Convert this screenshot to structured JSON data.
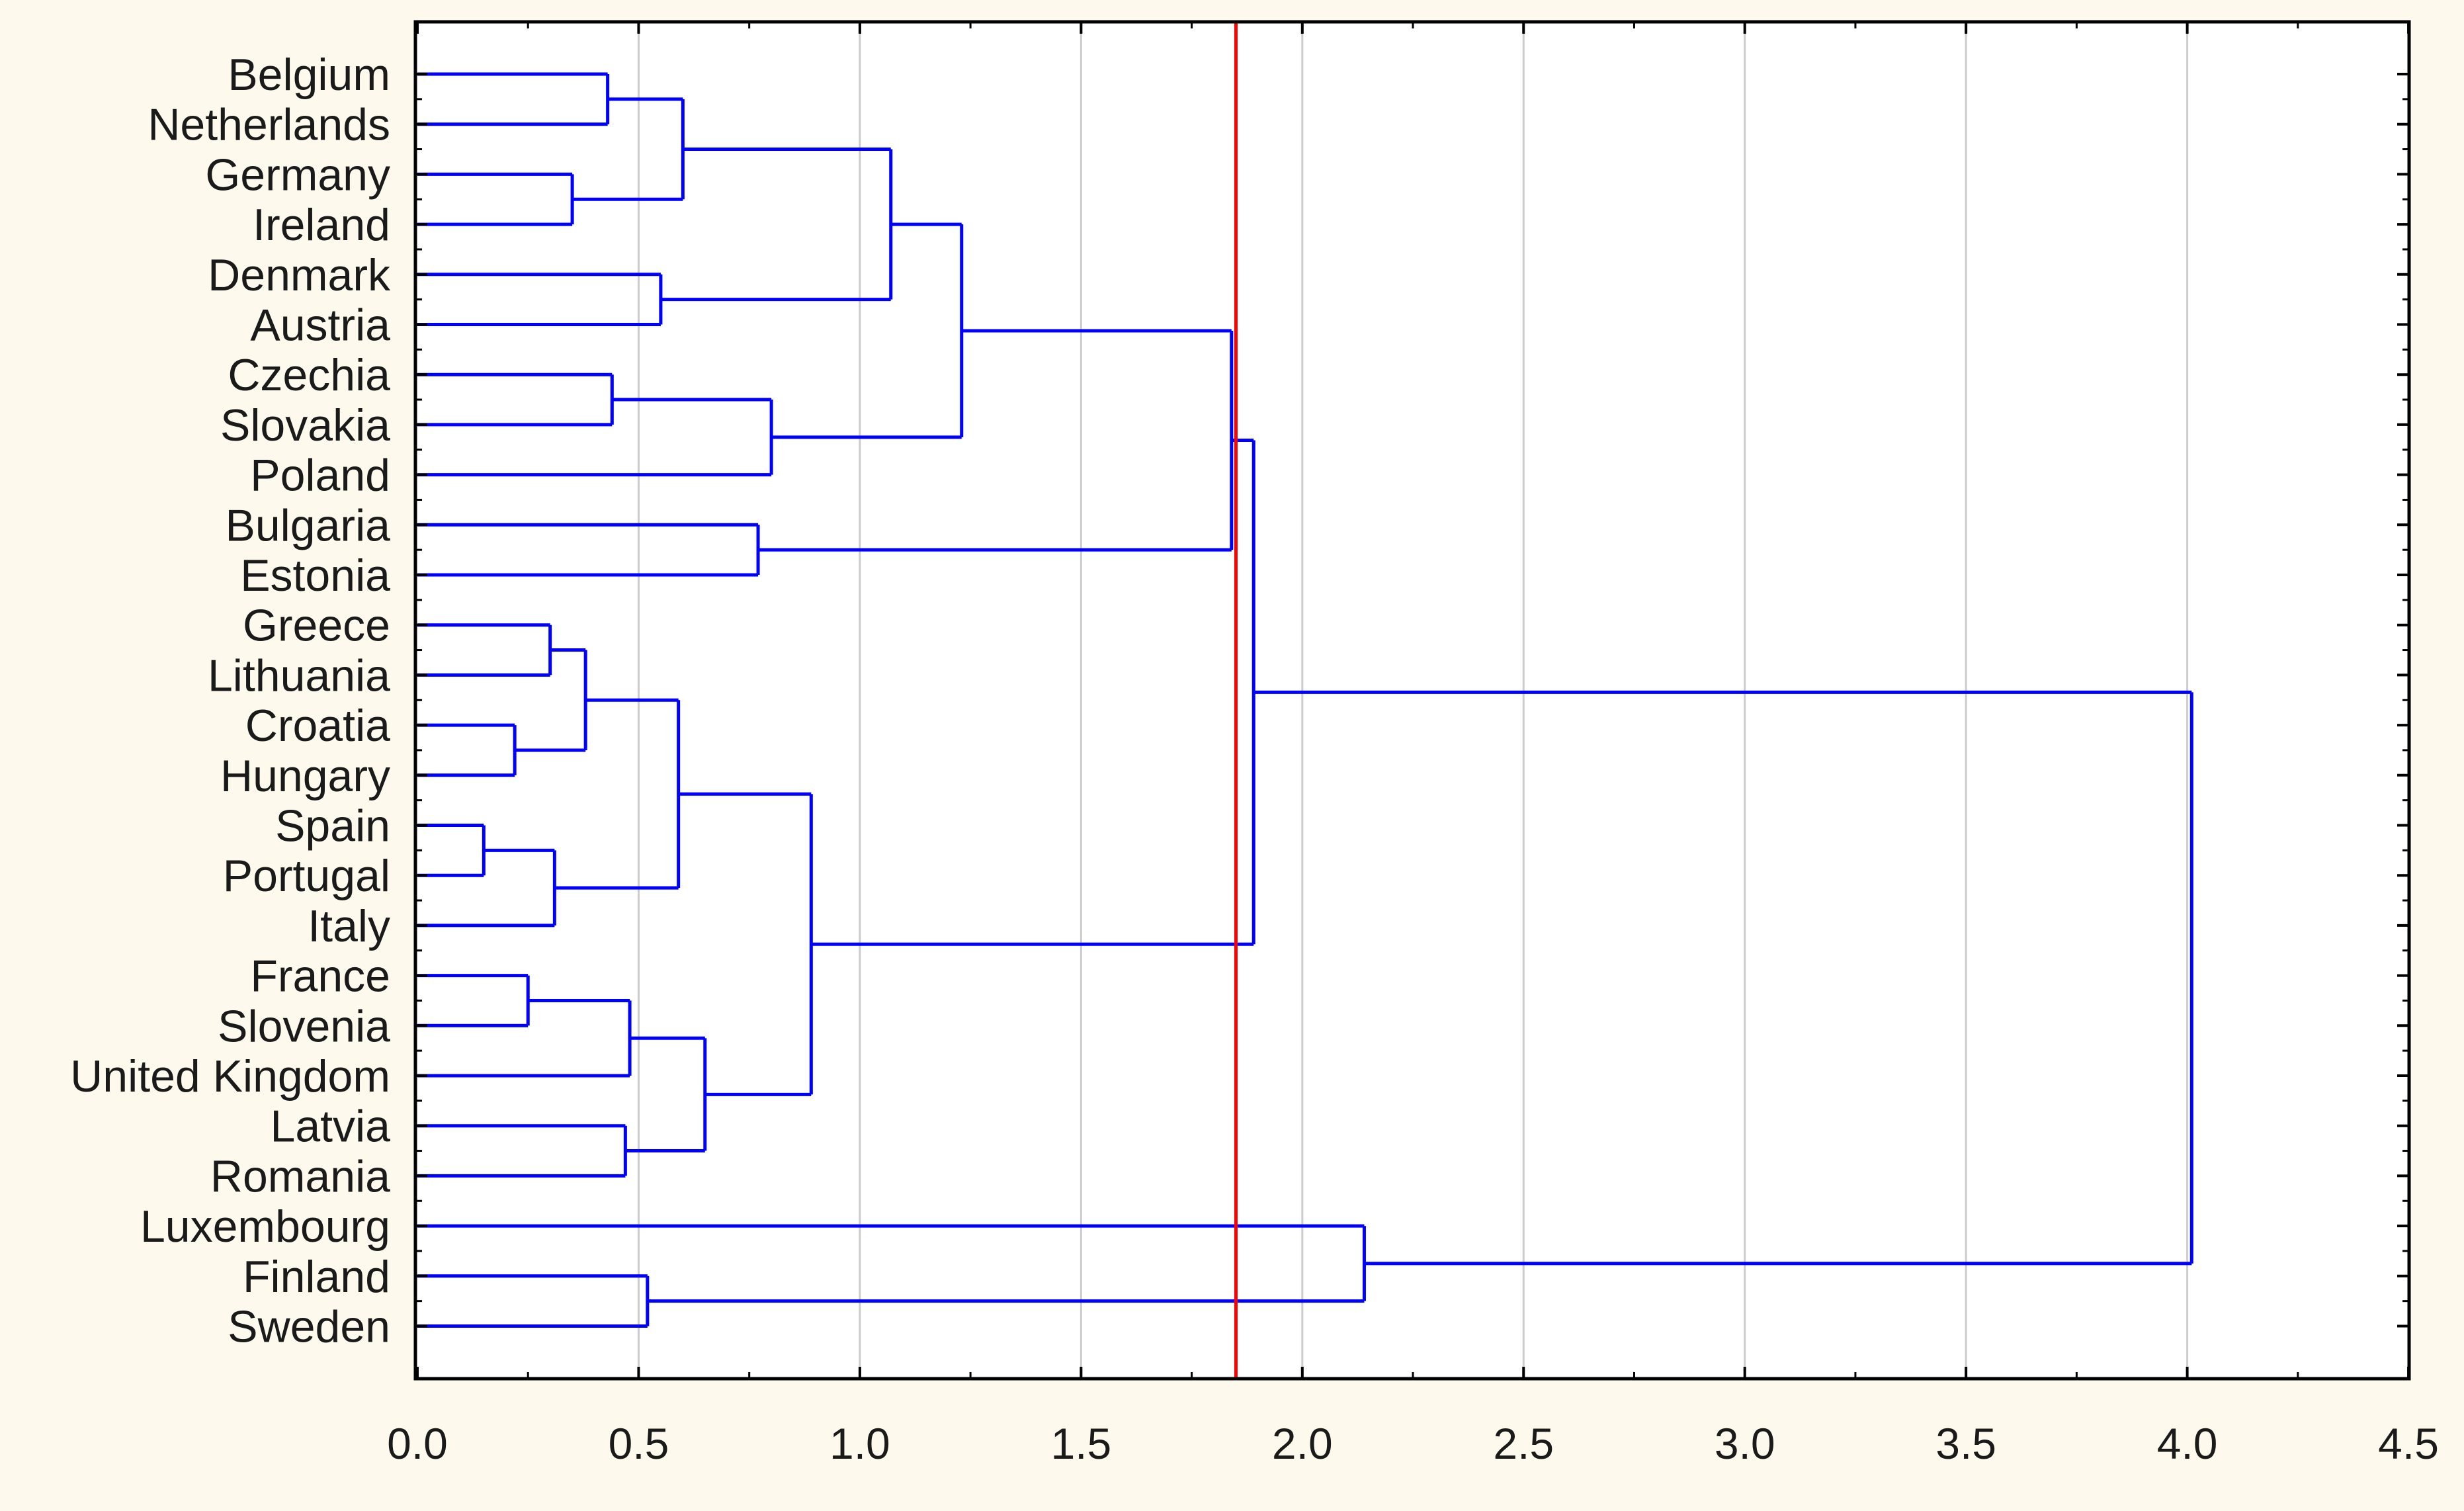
{
  "chart_data": {
    "type": "dendrogram",
    "title": "",
    "xlabel": "",
    "ylabel": "",
    "orientation": "horizontal",
    "xlim": [
      0,
      4.5
    ],
    "x_ticks": [
      "0.0",
      "0.5",
      "1.0",
      "1.5",
      "2.0",
      "2.5",
      "3.0",
      "3.5",
      "4.0",
      "4.5"
    ],
    "grid": "vertical",
    "leaves": [
      "Belgium",
      "Netherlands",
      "Germany",
      "Ireland",
      "Denmark",
      "Austria",
      "Czechia",
      "Slovakia",
      "Poland",
      "Bulgaria",
      "Estonia",
      "Greece",
      "Lithuania",
      "Croatia",
      "Hungary",
      "Spain",
      "Portugal",
      "Italy",
      "France",
      "Slovenia",
      "United Kingdom",
      "Latvia",
      "Romania",
      "Luxembourg",
      "Finland",
      "Sweden"
    ],
    "merges": [
      {
        "left": "Belgium",
        "right": "Netherlands",
        "height": 0.43
      },
      {
        "left": "Germany",
        "right": "Ireland",
        "height": 0.35
      },
      {
        "left": "Belgium+Netherlands",
        "right": "Germany+Ireland",
        "height": 0.6
      },
      {
        "left": "Denmark",
        "right": "Austria",
        "height": 0.55
      },
      {
        "left": "Belgium..Ireland",
        "right": "Denmark+Austria",
        "height": 1.07
      },
      {
        "left": "Czechia",
        "right": "Slovakia",
        "height": 0.44
      },
      {
        "left": "Czechia+Slovakia",
        "right": "Poland",
        "height": 0.8
      },
      {
        "left": "Belgium..Austria",
        "right": "Czechia..Poland",
        "height": 1.23
      },
      {
        "left": "Bulgaria",
        "right": "Estonia",
        "height": 0.77
      },
      {
        "left": "Belgium..Poland",
        "right": "Bulgaria+Estonia",
        "height": 1.84
      },
      {
        "left": "Greece",
        "right": "Lithuania",
        "height": 0.3
      },
      {
        "left": "Croatia",
        "right": "Hungary",
        "height": 0.22
      },
      {
        "left": "Greece+Lithuania",
        "right": "Croatia+Hungary",
        "height": 0.38
      },
      {
        "left": "Spain",
        "right": "Portugal",
        "height": 0.15
      },
      {
        "left": "Spain+Portugal",
        "right": "Italy",
        "height": 0.31
      },
      {
        "left": "Greece..Hungary",
        "right": "Spain..Italy",
        "height": 0.59
      },
      {
        "left": "France",
        "right": "Slovenia",
        "height": 0.25
      },
      {
        "left": "France+Slovenia",
        "right": "United Kingdom",
        "height": 0.48
      },
      {
        "left": "Latvia",
        "right": "Romania",
        "height": 0.47
      },
      {
        "left": "France..United Kingdom",
        "right": "Latvia+Romania",
        "height": 0.65
      },
      {
        "left": "Greece..Italy",
        "right": "France..Romania",
        "height": 0.89
      },
      {
        "left": "Belgium..Estonia",
        "right": "Greece..Romania",
        "height": 1.89
      },
      {
        "left": "Finland",
        "right": "Sweden",
        "height": 0.52
      },
      {
        "left": "Luxembourg",
        "right": "Finland+Sweden",
        "height": 2.14
      },
      {
        "left": "Belgium..Romania",
        "right": "Luxembourg..Sweden",
        "height": 4.01
      }
    ],
    "cut_line": {
      "value": 1.85,
      "color": "#ff0000"
    },
    "colors": {
      "branch": "#0000ff",
      "cut_line": "#ff0000",
      "grid": "#cccccc",
      "axis": "#000000",
      "background": "#fdf9ec",
      "plot_background": "#ffffff"
    }
  }
}
